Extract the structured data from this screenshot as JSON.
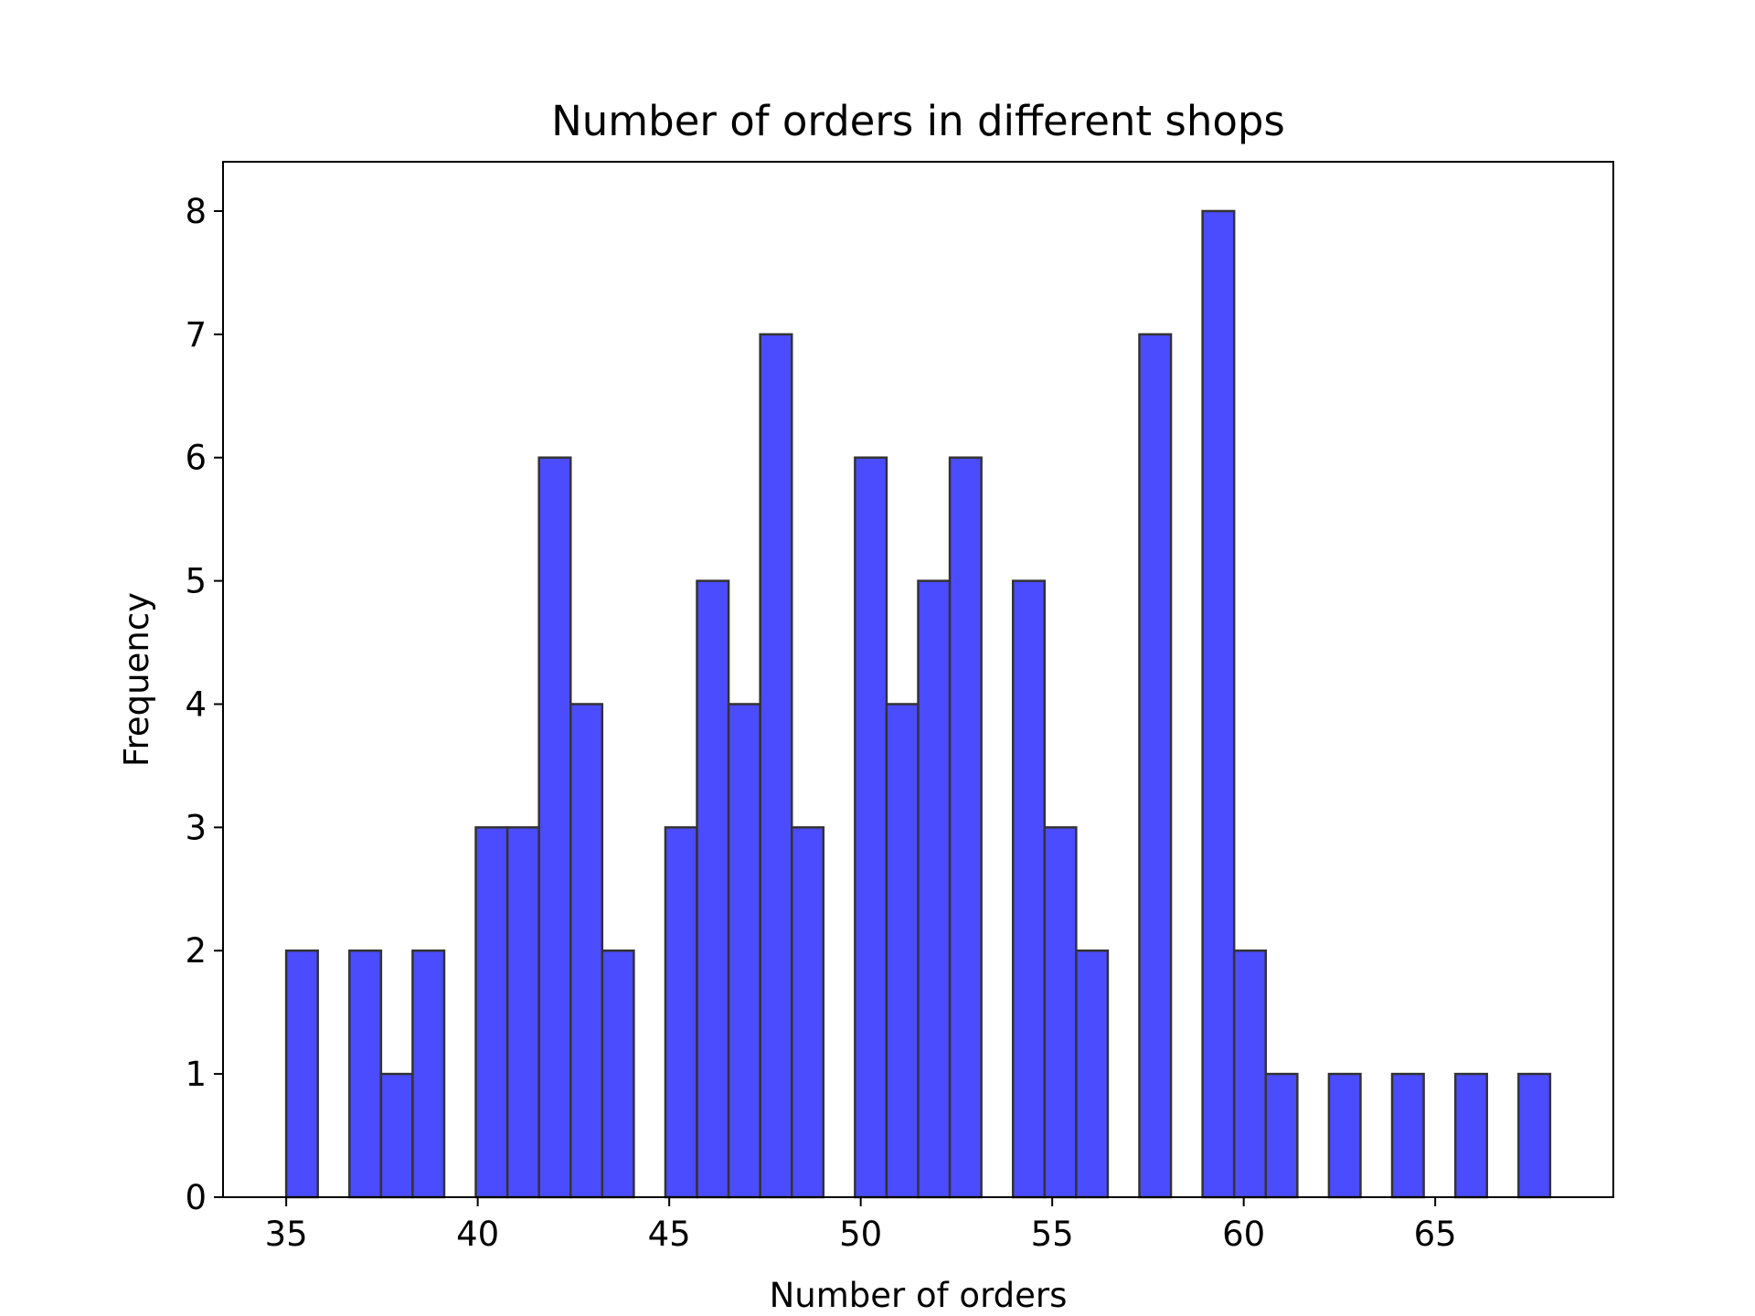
{
  "chart_data": {
    "type": "bar",
    "subtype": "histogram",
    "title": "Number of orders in different shops",
    "xlabel": "Number of orders",
    "ylabel": "Frequency",
    "bar_color": "#4c4cff",
    "edge_color": "#333333",
    "bin_width": 1.65,
    "x": [
      35.0,
      36.65,
      38.3,
      39.95,
      41.6,
      43.25,
      44.9,
      46.55,
      48.2,
      49.85,
      51.5,
      53.15,
      54.8,
      56.45,
      58.1,
      59.75,
      61.4,
      63.05,
      64.7,
      66.35
    ],
    "bins": [
      {
        "x0": 35.0,
        "x1": 35.825,
        "value": 2
      },
      {
        "x0": 35.825,
        "x1": 36.65,
        "value": 0
      },
      {
        "x0": 36.65,
        "x1": 37.475,
        "value": 2
      },
      {
        "x0": 37.475,
        "x1": 38.3,
        "value": 1
      },
      {
        "x0": 38.3,
        "x1": 39.125,
        "value": 2
      },
      {
        "x0": 39.125,
        "x1": 39.95,
        "value": 0
      },
      {
        "x0": 39.95,
        "x1": 40.775,
        "value": 3
      },
      {
        "x0": 40.775,
        "x1": 41.6,
        "value": 3
      },
      {
        "x0": 41.6,
        "x1": 42.425,
        "value": 6
      },
      {
        "x0": 42.425,
        "x1": 43.25,
        "value": 4
      },
      {
        "x0": 43.25,
        "x1": 44.075,
        "value": 2
      },
      {
        "x0": 44.075,
        "x1": 44.9,
        "value": 0
      },
      {
        "x0": 44.9,
        "x1": 45.725,
        "value": 3
      },
      {
        "x0": 45.725,
        "x1": 46.55,
        "value": 5
      },
      {
        "x0": 46.55,
        "x1": 47.375,
        "value": 4
      },
      {
        "x0": 47.375,
        "x1": 48.2,
        "value": 7
      },
      {
        "x0": 48.2,
        "x1": 49.025,
        "value": 3
      },
      {
        "x0": 49.025,
        "x1": 49.85,
        "value": 0
      },
      {
        "x0": 49.85,
        "x1": 50.675,
        "value": 6
      },
      {
        "x0": 50.675,
        "x1": 51.5,
        "value": 4
      },
      {
        "x0": 51.5,
        "x1": 52.325,
        "value": 5
      },
      {
        "x0": 52.325,
        "x1": 53.15,
        "value": 6
      },
      {
        "x0": 53.15,
        "x1": 53.975,
        "value": 0
      },
      {
        "x0": 53.975,
        "x1": 54.8,
        "value": 5
      },
      {
        "x0": 54.8,
        "x1": 55.625,
        "value": 3
      },
      {
        "x0": 55.625,
        "x1": 56.45,
        "value": 2
      },
      {
        "x0": 56.45,
        "x1": 57.275,
        "value": 0
      },
      {
        "x0": 57.275,
        "x1": 58.1,
        "value": 7
      },
      {
        "x0": 58.1,
        "x1": 58.925,
        "value": 0
      },
      {
        "x0": 58.925,
        "x1": 59.75,
        "value": 8
      },
      {
        "x0": 59.75,
        "x1": 60.575,
        "value": 2
      },
      {
        "x0": 60.575,
        "x1": 61.4,
        "value": 1
      },
      {
        "x0": 61.4,
        "x1": 62.225,
        "value": 0
      },
      {
        "x0": 62.225,
        "x1": 63.05,
        "value": 1
      },
      {
        "x0": 63.05,
        "x1": 63.875,
        "value": 0
      },
      {
        "x0": 63.875,
        "x1": 64.7,
        "value": 1
      },
      {
        "x0": 64.7,
        "x1": 65.525,
        "value": 0
      },
      {
        "x0": 65.525,
        "x1": 66.35,
        "value": 1
      },
      {
        "x0": 66.35,
        "x1": 67.175,
        "value": 0
      },
      {
        "x0": 67.175,
        "x1": 68.0,
        "value": 1
      }
    ],
    "xlim": [
      33.35,
      69.65
    ],
    "ylim": [
      0,
      8.4
    ],
    "xticks": [
      35,
      40,
      45,
      50,
      55,
      60,
      65
    ],
    "yticks": [
      0,
      1,
      2,
      3,
      4,
      5,
      6,
      7,
      8
    ],
    "grid": false
  }
}
